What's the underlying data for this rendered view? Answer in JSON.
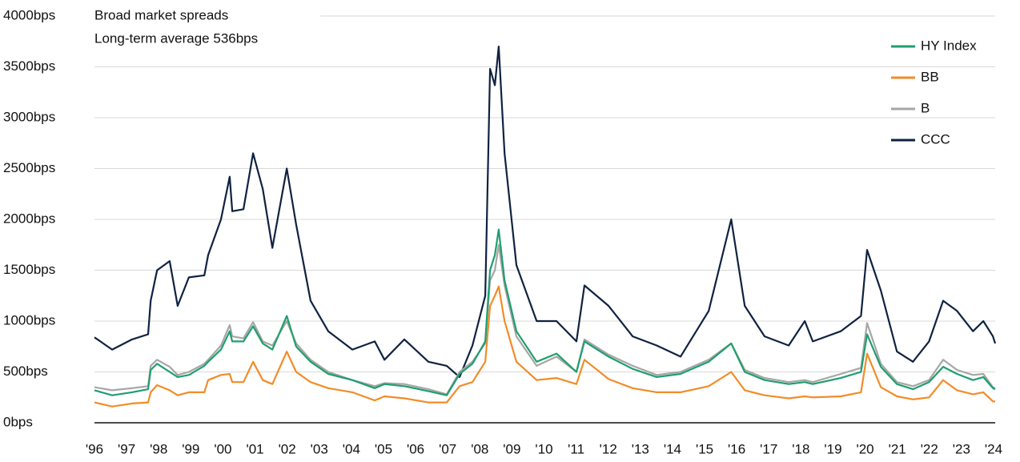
{
  "chart_data": {
    "type": "line",
    "title": "Broad market spreads",
    "subtitle": "Long-term average 536bps",
    "x": [
      1996.0,
      1996.55,
      1997.17,
      1997.67,
      1997.75,
      1997.95,
      1998.34,
      1998.59,
      1998.94,
      1999.42,
      1999.54,
      1999.94,
      2000.21,
      2000.29,
      2000.64,
      2000.94,
      2001.24,
      2001.54,
      2001.99,
      2002.28,
      2002.73,
      2003.28,
      2004.03,
      2004.73,
      2005.03,
      2005.65,
      2006.4,
      2006.97,
      2007.37,
      2007.77,
      2008.17,
      2008.32,
      2008.47,
      2008.59,
      2008.77,
      2009.14,
      2009.77,
      2010.39,
      2011.01,
      2011.26,
      2012.01,
      2012.76,
      2013.51,
      2014.25,
      2015.13,
      2015.83,
      2016.25,
      2016.87,
      2017.62,
      2018.12,
      2018.37,
      2019.24,
      2019.87,
      2020.06,
      2020.49,
      2020.99,
      2021.49,
      2021.99,
      2022.43,
      2022.86,
      2023.36,
      2023.68,
      2023.98,
      2024.05
    ],
    "series": [
      {
        "name": "CCC",
        "color": "#0f2240",
        "values": [
          840,
          720,
          820,
          870,
          1200,
          1500,
          1590,
          1150,
          1430,
          1450,
          1650,
          2000,
          2420,
          2080,
          2100,
          2650,
          2300,
          1720,
          2500,
          1950,
          1200,
          900,
          720,
          800,
          620,
          820,
          600,
          560,
          450,
          760,
          1250,
          3480,
          3320,
          3700,
          2650,
          1550,
          1000,
          1000,
          800,
          1350,
          1150,
          850,
          760,
          650,
          1100,
          2000,
          1150,
          850,
          760,
          1000,
          800,
          900,
          1050,
          1700,
          1300,
          700,
          600,
          800,
          1200,
          1100,
          900,
          1000,
          850,
          780
        ]
      },
      {
        "name": "BB",
        "color": "#f28c28",
        "values": [
          200,
          160,
          190,
          200,
          300,
          370,
          320,
          270,
          300,
          300,
          420,
          470,
          480,
          400,
          400,
          600,
          420,
          380,
          700,
          500,
          400,
          340,
          300,
          220,
          260,
          240,
          200,
          200,
          360,
          400,
          600,
          1150,
          1250,
          1340,
          1000,
          600,
          420,
          440,
          380,
          620,
          430,
          340,
          300,
          300,
          360,
          500,
          320,
          270,
          240,
          260,
          250,
          260,
          300,
          680,
          350,
          260,
          230,
          250,
          420,
          320,
          280,
          300,
          210,
          210
        ]
      },
      {
        "name": "B",
        "color": "#a6a6a6",
        "values": [
          350,
          320,
          340,
          360,
          560,
          620,
          550,
          470,
          500,
          580,
          620,
          760,
          960,
          850,
          830,
          990,
          800,
          760,
          1000,
          780,
          620,
          500,
          420,
          360,
          390,
          380,
          330,
          280,
          500,
          600,
          780,
          1400,
          1500,
          1750,
          1350,
          850,
          560,
          650,
          500,
          820,
          670,
          560,
          470,
          500,
          620,
          780,
          520,
          440,
          400,
          420,
          400,
          480,
          540,
          980,
          580,
          400,
          360,
          420,
          620,
          520,
          470,
          480,
          350,
          340
        ]
      },
      {
        "name": "HY Index",
        "color": "#1f9e6e",
        "values": [
          320,
          270,
          300,
          330,
          520,
          580,
          500,
          450,
          470,
          560,
          600,
          720,
          900,
          800,
          800,
          950,
          780,
          720,
          1050,
          750,
          600,
          480,
          420,
          340,
          380,
          360,
          310,
          270,
          480,
          580,
          800,
          1500,
          1650,
          1900,
          1400,
          900,
          600,
          680,
          500,
          800,
          650,
          530,
          450,
          480,
          600,
          780,
          500,
          420,
          380,
          400,
          380,
          440,
          500,
          870,
          550,
          380,
          330,
          400,
          550,
          480,
          420,
          450,
          340,
          330
        ]
      }
    ],
    "legend_order": [
      "HY Index",
      "BB",
      "B",
      "CCC"
    ],
    "xlim": [
      1996,
      2024.05
    ],
    "xticks": [
      {
        "value": 1996,
        "label": "'96"
      },
      {
        "value": 1997,
        "label": "'97"
      },
      {
        "value": 1998,
        "label": "'98"
      },
      {
        "value": 1999,
        "label": "'99"
      },
      {
        "value": 2000,
        "label": "'00"
      },
      {
        "value": 2001,
        "label": "'01"
      },
      {
        "value": 2002,
        "label": "'02"
      },
      {
        "value": 2003,
        "label": "'03"
      },
      {
        "value": 2004,
        "label": "'04"
      },
      {
        "value": 2005,
        "label": "'05"
      },
      {
        "value": 2006,
        "label": "'06"
      },
      {
        "value": 2007,
        "label": "'07"
      },
      {
        "value": 2008,
        "label": "'08"
      },
      {
        "value": 2009,
        "label": "'09"
      },
      {
        "value": 2010,
        "label": "'10"
      },
      {
        "value": 2011,
        "label": "'11"
      },
      {
        "value": 2012,
        "label": "'12"
      },
      {
        "value": 2013,
        "label": "'13"
      },
      {
        "value": 2014,
        "label": "'14"
      },
      {
        "value": 2015,
        "label": "'15"
      },
      {
        "value": 2016,
        "label": "'16"
      },
      {
        "value": 2017,
        "label": "'17"
      },
      {
        "value": 2018,
        "label": "'18"
      },
      {
        "value": 2019,
        "label": "'19"
      },
      {
        "value": 2020,
        "label": "'20"
      },
      {
        "value": 2021,
        "label": "'21"
      },
      {
        "value": 2022,
        "label": "'22"
      },
      {
        "value": 2023,
        "label": "'23"
      },
      {
        "value": 2024,
        "label": "'24"
      }
    ],
    "ylim": [
      0,
      4000
    ],
    "yticks": [
      {
        "value": 0,
        "label": "0bps"
      },
      {
        "value": 500,
        "label": "500bps"
      },
      {
        "value": 1000,
        "label": "1000bps"
      },
      {
        "value": 1500,
        "label": "1500bps"
      },
      {
        "value": 2000,
        "label": "2000bps"
      },
      {
        "value": 2500,
        "label": "2500bps"
      },
      {
        "value": 3000,
        "label": "3000bps"
      },
      {
        "value": 3500,
        "label": "3500bps"
      },
      {
        "value": 4000,
        "label": "4000bps"
      }
    ],
    "grid": true,
    "legend": "upper right"
  }
}
